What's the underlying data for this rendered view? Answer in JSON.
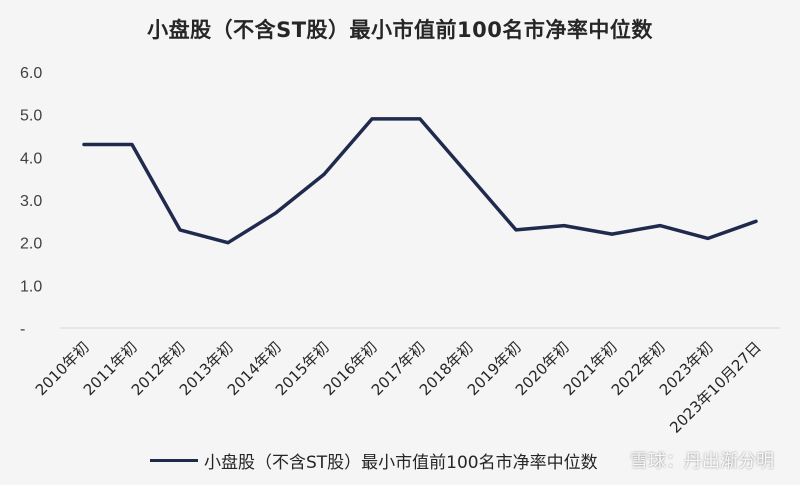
{
  "chart_data": {
    "type": "line",
    "title": "小盘股（不含ST股）最小市值前100名市净率中位数",
    "categories": [
      "2010年初",
      "2011年初",
      "2012年初",
      "2013年初",
      "2014年初",
      "2015年初",
      "2016年初",
      "2017年初",
      "2018年初",
      "2019年初",
      "2020年初",
      "2021年初",
      "2022年初",
      "2023年初",
      "2023年10月27日"
    ],
    "series": [
      {
        "name": "小盘股（不含ST股）最小市值前100名市净率中位数",
        "values": [
          4.3,
          4.3,
          2.3,
          2.0,
          2.7,
          3.6,
          4.9,
          4.9,
          3.6,
          2.3,
          2.4,
          2.2,
          2.4,
          2.1,
          2.5
        ],
        "color": "#1f2a4d"
      }
    ],
    "ylim": [
      0,
      6
    ],
    "yticks": [
      "-",
      "1.0",
      "2.0",
      "3.0",
      "4.0",
      "5.0",
      "6.0"
    ],
    "grid": false,
    "legend_position": "bottom"
  },
  "watermark": "雪球：丹出渐分明"
}
